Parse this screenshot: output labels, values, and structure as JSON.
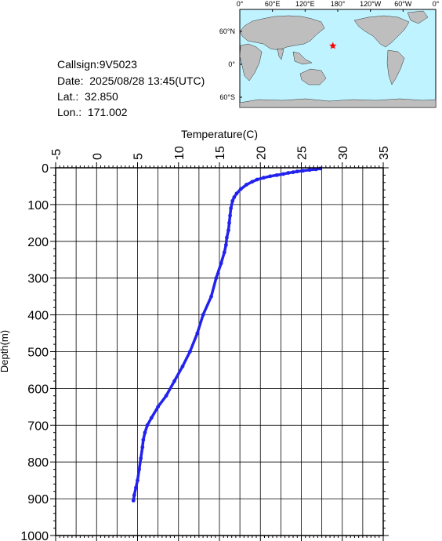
{
  "info": {
    "callsign": "Callsign:9V5023",
    "date": "Date:  2025/08/28 13:45(UTC)",
    "lat": "Lat.:  32.850",
    "lon": "Lon.:  171.002"
  },
  "map": {
    "lon_labels": [
      "0°",
      "60°E",
      "120°E",
      "180°",
      "120°W",
      "60°W",
      "0°"
    ],
    "lat_labels": [
      "60°N",
      "0°",
      "60°S"
    ],
    "ocean_color": "#bff3ff",
    "land_color": "#bebebe",
    "marker_color": "#ff0000",
    "marker": {
      "lat": 32.85,
      "lon": 171.002
    }
  },
  "chart_data": {
    "type": "line",
    "xlabel": "Temperature(C)",
    "ylabel": "Depth(m)",
    "xlim": [
      -5,
      35
    ],
    "ylim": [
      0,
      1000
    ],
    "x_ticks": [
      "-5",
      "0",
      "5",
      "10",
      "15",
      "20",
      "25",
      "30",
      "35"
    ],
    "y_ticks": [
      "0",
      "100",
      "200",
      "300",
      "400",
      "500",
      "600",
      "700",
      "800",
      "900",
      "1000"
    ],
    "grid": true,
    "series_color": "#2222ee",
    "series": [
      {
        "x": [
          27.3,
          26.8,
          26.0,
          25.2,
          24.5,
          24.0,
          23.4,
          22.8,
          22.0,
          21.2,
          20.4,
          19.6,
          19.0,
          18.3,
          17.6,
          17.1,
          16.8,
          16.6,
          16.4,
          16.3,
          16.2,
          16.1,
          15.9,
          15.8,
          15.6,
          15.2,
          14.6,
          14.0,
          13.0,
          12.3,
          11.4,
          10.5,
          9.5,
          8.5,
          7.5,
          6.7,
          6.2,
          5.9,
          5.7,
          5.6,
          5.4,
          5.2,
          5.0,
          4.8,
          4.6,
          4.5
        ],
        "y": [
          2,
          4,
          6,
          8,
          10,
          12,
          14,
          17,
          20,
          23,
          27,
          32,
          38,
          46,
          58,
          70,
          80,
          90,
          110,
          130,
          150,
          170,
          190,
          210,
          230,
          260,
          300,
          350,
          400,
          450,
          500,
          540,
          580,
          620,
          650,
          680,
          700,
          720,
          740,
          760,
          790,
          820,
          850,
          870,
          890,
          905
        ]
      }
    ]
  }
}
